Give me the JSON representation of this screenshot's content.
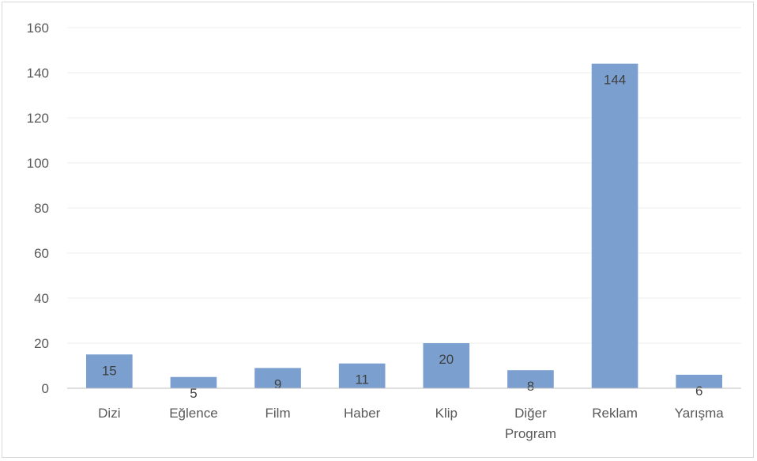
{
  "chart_data": {
    "type": "bar",
    "categories": [
      [
        "Dizi"
      ],
      [
        "Eğlence"
      ],
      [
        "Film"
      ],
      [
        "Haber"
      ],
      [
        "Klip"
      ],
      [
        "Diğer",
        "Program"
      ],
      [
        "Reklam"
      ],
      [
        "Yarışma"
      ]
    ],
    "values": [
      15,
      5,
      9,
      11,
      20,
      8,
      144,
      6
    ],
    "title": "",
    "xlabel": "",
    "ylabel": "",
    "ylim": [
      0,
      160
    ],
    "yticks": [
      0,
      20,
      40,
      60,
      80,
      100,
      120,
      140,
      160
    ],
    "grid": true,
    "legend": "none",
    "bar_color": "#7ba0d0"
  }
}
